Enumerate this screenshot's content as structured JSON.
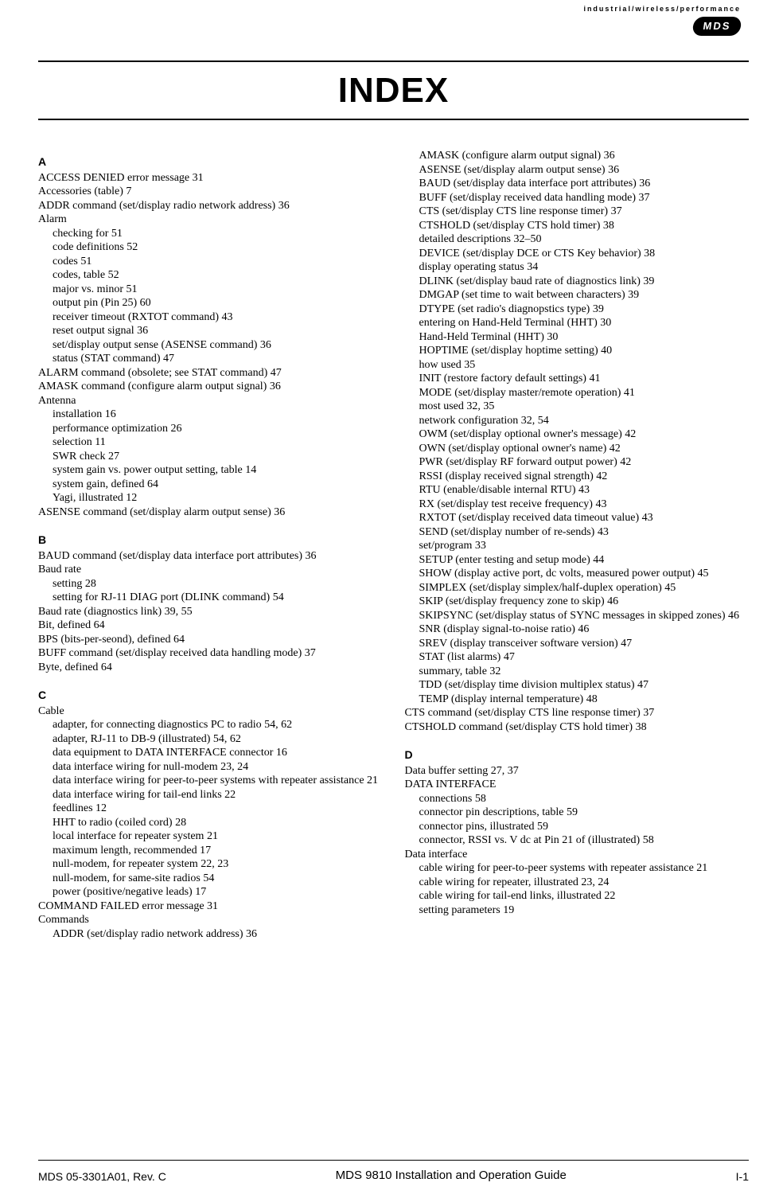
{
  "brand": {
    "tagline": "industrial/wireless/performance",
    "logo_text": "MDS"
  },
  "title": "INDEX",
  "footer": {
    "left": "MDS 05-3301A01, Rev. C",
    "center": "MDS 9810 Installation and Operation Guide",
    "right": "I-1"
  },
  "left_column": [
    {
      "type": "letter",
      "text": "A"
    },
    {
      "type": "main",
      "text": "ACCESS DENIED error message  31"
    },
    {
      "type": "main",
      "text": "Accessories (table)  7"
    },
    {
      "type": "main",
      "text": "ADDR command (set/display radio network address)  36"
    },
    {
      "type": "main",
      "text": "Alarm"
    },
    {
      "type": "sub",
      "text": "checking for  51"
    },
    {
      "type": "sub",
      "text": "code definitions  52"
    },
    {
      "type": "sub",
      "text": "codes  51"
    },
    {
      "type": "sub",
      "text": "codes, table  52"
    },
    {
      "type": "sub",
      "text": "major vs. minor  51"
    },
    {
      "type": "sub",
      "text": "output pin (Pin 25)  60"
    },
    {
      "type": "sub",
      "text": "receiver timeout (RXTOT command)  43"
    },
    {
      "type": "sub",
      "text": "reset output signal  36"
    },
    {
      "type": "sub",
      "text": "set/display output sense (ASENSE command)  36"
    },
    {
      "type": "sub",
      "text": "status (STAT command)  47"
    },
    {
      "type": "main",
      "text": "ALARM command (obsolete; see STAT command)  47"
    },
    {
      "type": "main",
      "text": "AMASK command (configure alarm output signal)  36"
    },
    {
      "type": "main",
      "text": "Antenna"
    },
    {
      "type": "sub",
      "text": "installation  16"
    },
    {
      "type": "sub",
      "text": "performance optimization  26"
    },
    {
      "type": "sub",
      "text": "selection  11"
    },
    {
      "type": "sub",
      "text": "SWR check  27"
    },
    {
      "type": "sub",
      "text": "system gain vs. power output setting, table  14"
    },
    {
      "type": "sub",
      "text": "system gain, defined  64"
    },
    {
      "type": "sub",
      "text": "Yagi, illustrated  12"
    },
    {
      "type": "main",
      "text": "ASENSE command (set/display alarm output sense)  36"
    },
    {
      "type": "gap"
    },
    {
      "type": "letter",
      "text": "B"
    },
    {
      "type": "main",
      "text": "BAUD command (set/display data interface port attributes)  36"
    },
    {
      "type": "main",
      "text": "Baud rate"
    },
    {
      "type": "sub",
      "text": "setting  28"
    },
    {
      "type": "sub",
      "text": "setting for RJ-11 DIAG port (DLINK command)  54"
    },
    {
      "type": "main",
      "text": "Baud rate (diagnostics link)  39, 55"
    },
    {
      "type": "main",
      "text": "Bit, defined  64"
    },
    {
      "type": "main",
      "text": "BPS (bits-per-seond), defined  64"
    },
    {
      "type": "main",
      "text": "BUFF command (set/display received data handling mode)  37"
    },
    {
      "type": "main",
      "text": "Byte, defined  64"
    },
    {
      "type": "gap"
    },
    {
      "type": "letter",
      "text": "C"
    },
    {
      "type": "main",
      "text": "Cable"
    },
    {
      "type": "sub",
      "text": "adapter, for connecting diagnostics PC to radio  54, 62"
    },
    {
      "type": "sub",
      "text": "adapter, RJ-11 to DB-9 (illustrated)  54, 62"
    },
    {
      "type": "sub",
      "text": "data equipment to DATA INTERFACE connector  16"
    },
    {
      "type": "sub",
      "text": "data interface wiring for null-modem  23, 24"
    },
    {
      "type": "subwrap",
      "text": "data interface wiring for peer-to-peer systems with repeater assistance  21"
    },
    {
      "type": "sub",
      "text": "data interface wiring for tail-end links  22"
    },
    {
      "type": "sub",
      "text": "feedlines  12"
    },
    {
      "type": "sub",
      "text": "HHT to radio (coiled cord)  28"
    },
    {
      "type": "sub",
      "text": "local interface for repeater system  21"
    },
    {
      "type": "sub",
      "text": "maximum length, recommended  17"
    },
    {
      "type": "sub",
      "text": "null-modem, for repeater system  22, 23"
    },
    {
      "type": "sub",
      "text": "null-modem, for same-site radios  54"
    },
    {
      "type": "sub",
      "text": "power (positive/negative leads)  17"
    },
    {
      "type": "main",
      "text": "COMMAND FAILED error message  31"
    },
    {
      "type": "main",
      "text": "Commands"
    },
    {
      "type": "sub",
      "text": "ADDR (set/display radio network address)  36"
    }
  ],
  "right_column": [
    {
      "type": "sub",
      "text": "AMASK (configure alarm output signal)  36"
    },
    {
      "type": "sub",
      "text": "ASENSE (set/display alarm output sense)  36"
    },
    {
      "type": "sub",
      "text": "BAUD (set/display data interface port attributes)  36"
    },
    {
      "type": "sub",
      "text": "BUFF (set/display received data handling mode)  37"
    },
    {
      "type": "sub",
      "text": "CTS (set/display CTS line response timer)  37"
    },
    {
      "type": "sub",
      "text": "CTSHOLD (set/display CTS hold timer)  38"
    },
    {
      "type": "sub",
      "text": "detailed descriptions  32–50"
    },
    {
      "type": "sub",
      "text": "DEVICE (set/display DCE or CTS Key behavior)  38"
    },
    {
      "type": "sub",
      "text": "display operating status  34"
    },
    {
      "type": "sub",
      "text": "DLINK (set/display baud rate of diagnostics link)  39"
    },
    {
      "type": "sub",
      "text": "DMGAP (set time to wait between characters)  39"
    },
    {
      "type": "sub",
      "text": "DTYPE (set radio's diagnopstics type)  39"
    },
    {
      "type": "sub",
      "text": "entering on Hand-Held Terminal (HHT)  30"
    },
    {
      "type": "sub",
      "text": "Hand-Held Terminal (HHT)  30"
    },
    {
      "type": "sub",
      "text": "HOPTIME (set/display hoptime setting)  40"
    },
    {
      "type": "sub",
      "text": "how used  35"
    },
    {
      "type": "sub",
      "text": "INIT (restore factory default settings)  41"
    },
    {
      "type": "sub",
      "text": "MODE (set/display master/remote operation)  41"
    },
    {
      "type": "sub",
      "text": "most used  32, 35"
    },
    {
      "type": "sub",
      "text": "network configuration  32, 54"
    },
    {
      "type": "sub",
      "text": "OWM (set/display optional owner's message)  42"
    },
    {
      "type": "sub",
      "text": "OWN (set/display optional owner's name)  42"
    },
    {
      "type": "sub",
      "text": "PWR (set/display RF forward output power)  42"
    },
    {
      "type": "sub",
      "text": "RSSI (display received signal strength)  42"
    },
    {
      "type": "sub",
      "text": "RTU (enable/disable internal RTU)  43"
    },
    {
      "type": "sub",
      "text": "RX (set/display test receive frequency)  43"
    },
    {
      "type": "sub",
      "text": "RXTOT (set/display received data timeout value)  43"
    },
    {
      "type": "sub",
      "text": "SEND (set/display number of re-sends)  43"
    },
    {
      "type": "sub",
      "text": "set/program  33"
    },
    {
      "type": "sub",
      "text": "SETUP (enter testing and setup mode)  44"
    },
    {
      "type": "subwrap",
      "text": "SHOW (display active port, dc volts, measured power output)  45"
    },
    {
      "type": "sub",
      "text": "SIMPLEX (set/display simplex/half-duplex operation)  45"
    },
    {
      "type": "sub",
      "text": "SKIP (set/display frequency zone to skip)  46"
    },
    {
      "type": "subwrap",
      "text": "SKIPSYNC (set/display status of SYNC messages in skipped zones)  46"
    },
    {
      "type": "sub",
      "text": "SNR (display signal-to-noise ratio)  46"
    },
    {
      "type": "sub",
      "text": "SREV (display transceiver software version)  47"
    },
    {
      "type": "sub",
      "text": "STAT (list alarms)  47"
    },
    {
      "type": "sub",
      "text": "summary, table  32"
    },
    {
      "type": "sub",
      "text": "TDD (set/display time division multiplex status)  47"
    },
    {
      "type": "sub",
      "text": "TEMP (display internal temperature)  48"
    },
    {
      "type": "main",
      "text": "CTS command (set/display CTS line response timer)  37"
    },
    {
      "type": "main",
      "text": "CTSHOLD command (set/display CTS hold timer)  38"
    },
    {
      "type": "gap"
    },
    {
      "type": "letter",
      "text": "D"
    },
    {
      "type": "main",
      "text": "Data buffer setting  27, 37"
    },
    {
      "type": "main",
      "text": "DATA INTERFACE"
    },
    {
      "type": "sub",
      "text": "connections  58"
    },
    {
      "type": "sub",
      "text": "connector pin descriptions, table  59"
    },
    {
      "type": "sub",
      "text": "connector pins, illustrated  59"
    },
    {
      "type": "sub",
      "text": "connector, RSSI vs. V dc at Pin 21 of (illustrated)  58"
    },
    {
      "type": "main",
      "text": "Data interface"
    },
    {
      "type": "subwrap",
      "text": "cable wiring for peer-to-peer systems with repeater assistance  21"
    },
    {
      "type": "sub",
      "text": "cable wiring for repeater, illustrated  23, 24"
    },
    {
      "type": "sub",
      "text": "cable wiring for tail-end links, illustrated  22"
    },
    {
      "type": "sub",
      "text": "setting parameters  19"
    }
  ]
}
